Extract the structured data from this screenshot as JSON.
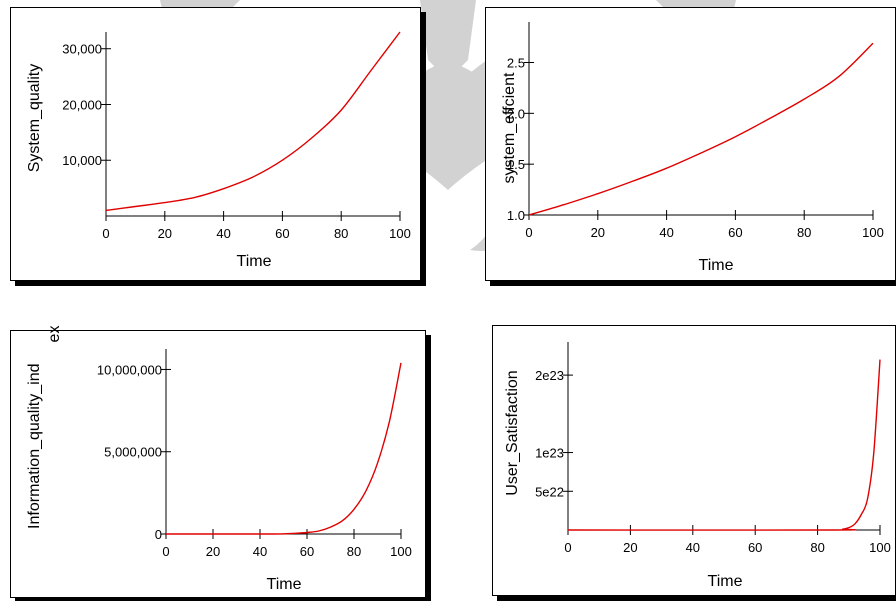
{
  "colors": {
    "line": "#e00000",
    "axis": "#000000",
    "shadow": "#000000",
    "watermark": "#d2d2d2"
  },
  "watermark": {
    "icon": "ornament-watermark"
  },
  "chart_data": [
    {
      "type": "line",
      "xlabel": "Time",
      "ylabel": [
        "System_quality"
      ],
      "xlim": [
        0,
        100
      ],
      "ylim": [
        0,
        33000
      ],
      "x_ticks": [
        0,
        20,
        40,
        60,
        80,
        100
      ],
      "y_ticks": [
        {
          "value": 10000,
          "label": "10,000"
        },
        {
          "value": 20000,
          "label": "20,000"
        },
        {
          "value": 30000,
          "label": "30,000"
        }
      ],
      "series": [
        {
          "x": [
            0,
            10,
            20,
            30,
            40,
            50,
            60,
            70,
            80,
            90,
            100
          ],
          "y": [
            1000,
            1700,
            2400,
            3300,
            4900,
            7000,
            10000,
            14000,
            19000,
            26000,
            33000
          ]
        }
      ]
    },
    {
      "type": "line",
      "xlabel": "Time",
      "ylabel": [
        "system_effcient"
      ],
      "xlim": [
        0,
        100
      ],
      "ylim": [
        1.0,
        2.8
      ],
      "x_ticks": [
        0,
        20,
        40,
        60,
        80,
        100
      ],
      "y_ticks": [
        {
          "value": 1.0,
          "label": "1.0"
        },
        {
          "value": 1.5,
          "label": "1.5"
        },
        {
          "value": 2.0,
          "label": "2.0"
        },
        {
          "value": 2.5,
          "label": "2.5"
        }
      ],
      "series": [
        {
          "x": [
            0,
            10,
            20,
            30,
            40,
            50,
            60,
            70,
            80,
            90,
            100
          ],
          "y": [
            1.0,
            1.1,
            1.21,
            1.33,
            1.46,
            1.61,
            1.77,
            1.95,
            2.14,
            2.36,
            2.69
          ]
        }
      ]
    },
    {
      "type": "line",
      "xlabel": "Time",
      "ylabel": [
        "Information_quality_ind",
        "ex"
      ],
      "xlim": [
        0,
        100
      ],
      "ylim": [
        0,
        11000000
      ],
      "x_ticks": [
        0,
        20,
        40,
        60,
        80,
        100
      ],
      "y_ticks": [
        {
          "value": 0,
          "label": "0"
        },
        {
          "value": 5000000,
          "label": "5,000,000"
        },
        {
          "value": 10000000,
          "label": "10,000,000"
        }
      ],
      "series": [
        {
          "x": [
            0,
            45,
            50,
            55,
            60,
            65,
            70,
            75,
            80,
            85,
            90,
            95,
            100
          ],
          "y": [
            0,
            0,
            15000,
            40000,
            90000,
            180000,
            420000,
            800000,
            1500000,
            2600000,
            4300000,
            6800000,
            10400000
          ]
        }
      ]
    },
    {
      "type": "line",
      "xlabel": "Time",
      "ylabel": [
        "User_Satisfaction"
      ],
      "xlim": [
        0,
        100
      ],
      "ylim": [
        0,
        2.35e+23
      ],
      "x_ticks": [
        0,
        20,
        40,
        60,
        80,
        100
      ],
      "y_ticks": [
        {
          "value": 5e+22,
          "label": "5e22"
        },
        {
          "value": 1e+23,
          "label": "1e23"
        },
        {
          "value": 2e+23,
          "label": "2e23"
        }
      ],
      "series": [
        {
          "x": [
            0,
            85,
            88,
            90,
            92,
            94,
            96,
            98,
            100
          ],
          "y": [
            0,
            0,
            1e+21,
            3e+21,
            8e+21,
            2e+22,
            4e+22,
            1e+23,
            2.2e+23
          ]
        }
      ]
    }
  ]
}
